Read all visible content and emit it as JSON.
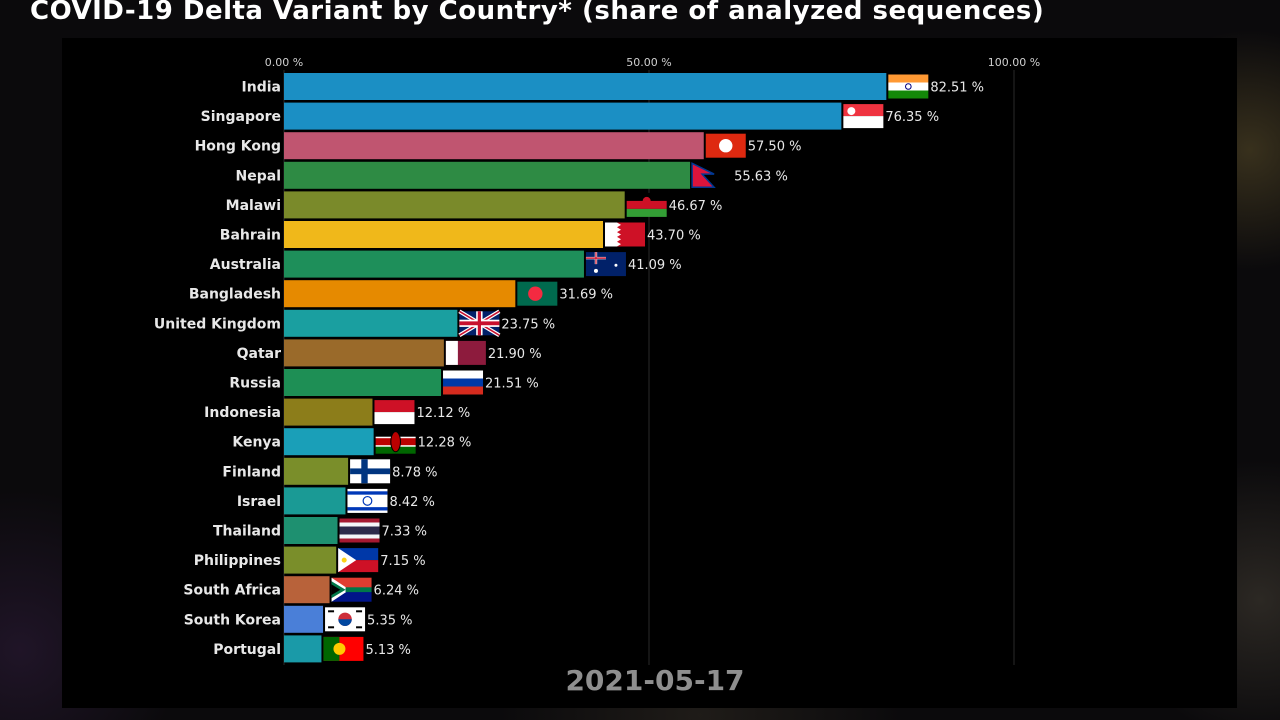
{
  "title": "COVID-19 Delta Variant by Country* (share of analyzed sequences)",
  "date": "2021-05-17",
  "chart_data": {
    "type": "bar",
    "orientation": "horizontal",
    "title": "COVID-19 Delta Variant by Country* (share of analyzed sequences)",
    "xlim": [
      0,
      100
    ],
    "x_ticks": [
      "0.00 %",
      "50.00 %",
      "100.00 %"
    ],
    "grid": true,
    "categories": [
      "India",
      "Singapore",
      "Hong Kong",
      "Nepal",
      "Malawi",
      "Bahrain",
      "Australia",
      "Bangladesh",
      "United Kingdom",
      "Qatar",
      "Russia",
      "Indonesia",
      "Kenya",
      "Finland",
      "Israel",
      "Thailand",
      "Philippines",
      "South Africa",
      "South Korea",
      "Portugal"
    ],
    "values": [
      82.51,
      76.35,
      57.5,
      55.63,
      46.67,
      43.7,
      41.09,
      31.69,
      23.75,
      21.9,
      21.51,
      12.12,
      12.28,
      8.78,
      8.42,
      7.33,
      7.15,
      6.24,
      5.35,
      5.13
    ],
    "value_labels": [
      "82.51 %",
      "76.35 %",
      "57.50 %",
      "55.63 %",
      "46.67 %",
      "43.70 %",
      "41.09 %",
      "31.69 %",
      "23.75 %",
      "21.90 %",
      "21.51 %",
      "12.12 %",
      "12.28 %",
      "8.78 %",
      "8.42 %",
      "7.33 %",
      "7.15 %",
      "6.24 %",
      "5.35 %",
      "5.13 %"
    ],
    "bar_colors": [
      "#1b8fc4",
      "#1b8fc4",
      "#c05570",
      "#2e8b44",
      "#7a8a2a",
      "#f0b81a",
      "#1e8f5a",
      "#e68a00",
      "#1a9fa0",
      "#9a6a2a",
      "#1e8f55",
      "#8c7d1a",
      "#1a9fb8",
      "#7a8e2a",
      "#1a9a95",
      "#1e9070",
      "#7a8e2a",
      "#b8623a",
      "#4a7fd8",
      "#1a9aa8"
    ],
    "flags": [
      "flag-india",
      "flag-singapore",
      "flag-hong-kong",
      "flag-nepal",
      "flag-malawi",
      "flag-bahrain",
      "flag-australia",
      "flag-bangladesh",
      "flag-united-kingdom",
      "flag-qatar",
      "flag-russia",
      "flag-indonesia",
      "flag-kenya",
      "flag-finland",
      "flag-israel",
      "flag-thailand",
      "flag-philippines",
      "flag-south-africa",
      "flag-south-korea",
      "flag-portugal"
    ]
  }
}
